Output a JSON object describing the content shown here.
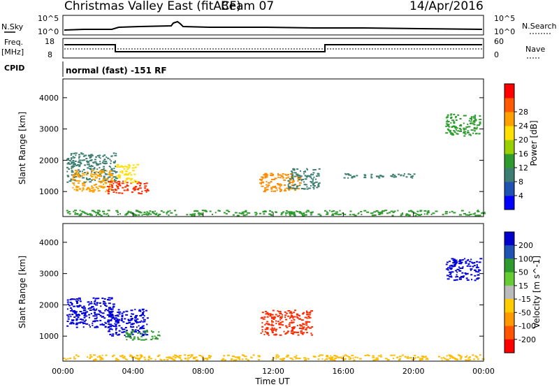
{
  "header": {
    "title": "Christmas Valley East (fitACF)",
    "beam": "Beam 07",
    "date": "14/Apr/2016"
  },
  "status_panels": {
    "nsky_label": "N.Sky",
    "nsky_ticks": [
      "10^5",
      "10^0"
    ],
    "nsearch_label": "N.Search",
    "nsearch_ticks": [
      "10^5",
      "10^0"
    ],
    "freq_label_1": "Freq.",
    "freq_label_2": "[MHz]",
    "freq_ticks": [
      "18",
      "8"
    ],
    "nave_label": "Nave",
    "nave_ticks": [
      "60",
      "0"
    ],
    "cpid_label": "CPID",
    "cpid_text": "normal (fast) -151 RF"
  },
  "chart_data": [
    {
      "type": "heatmap",
      "title": "",
      "parameter": "Power",
      "ylabel": "Slant Range [km]",
      "xlabel": "",
      "x_range_hours": [
        0,
        24
      ],
      "ylim": [
        200,
        4600
      ],
      "y_ticks": [
        1000,
        2000,
        3000,
        4000
      ],
      "colorbar": {
        "label": "Power [dB]",
        "ticks": [
          "4",
          "8",
          "12",
          "16",
          "20",
          "24",
          "28"
        ],
        "colors": [
          "#0000ff",
          "#1f52b3",
          "#3c7f72",
          "#2e9b2e",
          "#9bd000",
          "#ffe000",
          "#ffa000",
          "#ff5a00",
          "#ff0000"
        ]
      },
      "echo_regions": [
        {
          "t": [
            0.2,
            3.0
          ],
          "range_km": [
            1300,
            2250
          ],
          "color": "#3c7f72"
        },
        {
          "t": [
            0.5,
            2.8
          ],
          "range_km": [
            1000,
            1700
          ],
          "color": "#ffa000"
        },
        {
          "t": [
            2.5,
            4.8
          ],
          "range_km": [
            950,
            1350
          ],
          "color": "#ff2a00"
        },
        {
          "t": [
            3.0,
            4.2
          ],
          "range_km": [
            1300,
            1900
          ],
          "color": "#ffe000"
        },
        {
          "t": [
            11.2,
            13.5
          ],
          "range_km": [
            1000,
            1600
          ],
          "color": "#ff8a00"
        },
        {
          "t": [
            12.8,
            14.6
          ],
          "range_km": [
            1100,
            1750
          ],
          "color": "#3c7f72"
        },
        {
          "t": [
            16.0,
            20.0
          ],
          "range_km": [
            1450,
            1600
          ],
          "color": "#3c7f72"
        },
        {
          "t": [
            21.8,
            23.8
          ],
          "range_km": [
            2800,
            3500
          ],
          "color": "#2e9b2e"
        },
        {
          "t": [
            0.0,
            24.0
          ],
          "range_km": [
            250,
            420
          ],
          "color": "#2e9b2e"
        }
      ]
    },
    {
      "type": "heatmap",
      "title": "",
      "parameter": "Velocity",
      "ylabel": "Slant Range [km]",
      "xlabel": "Time UT",
      "x_range_hours": [
        0,
        24
      ],
      "x_ticks": [
        "00:00",
        "04:00",
        "08:00",
        "12:00",
        "16:00",
        "20:00",
        "00:00"
      ],
      "ylim": [
        200,
        4600
      ],
      "y_ticks": [
        1000,
        2000,
        3000,
        4000
      ],
      "colorbar": {
        "label": "Velocity [m s^-1]",
        "ticks": [
          "200",
          "100",
          "50",
          "15",
          "-15",
          "-50",
          "-100",
          "-200"
        ],
        "colors": [
          "#0000cc",
          "#1f52b3",
          "#2e9b2e",
          "#66cc33",
          "#bbbbbb",
          "#ffcc00",
          "#ff9900",
          "#ff5500",
          "#ff0000"
        ]
      },
      "echo_regions": [
        {
          "t": [
            0.2,
            3.0
          ],
          "range_km": [
            1300,
            2250
          ],
          "color": "#0000dd"
        },
        {
          "t": [
            2.5,
            4.8
          ],
          "range_km": [
            1000,
            1900
          ],
          "color": "#0000dd"
        },
        {
          "t": [
            3.5,
            5.5
          ],
          "range_km": [
            900,
            1200
          ],
          "color": "#2e9b2e"
        },
        {
          "t": [
            11.2,
            14.2
          ],
          "range_km": [
            1050,
            1850
          ],
          "color": "#ff2a00"
        },
        {
          "t": [
            21.8,
            23.8
          ],
          "range_km": [
            2800,
            3500
          ],
          "color": "#0000dd"
        },
        {
          "t": [
            0.0,
            24.0
          ],
          "range_km": [
            250,
            420
          ],
          "color": "#ffbb00"
        }
      ]
    }
  ]
}
